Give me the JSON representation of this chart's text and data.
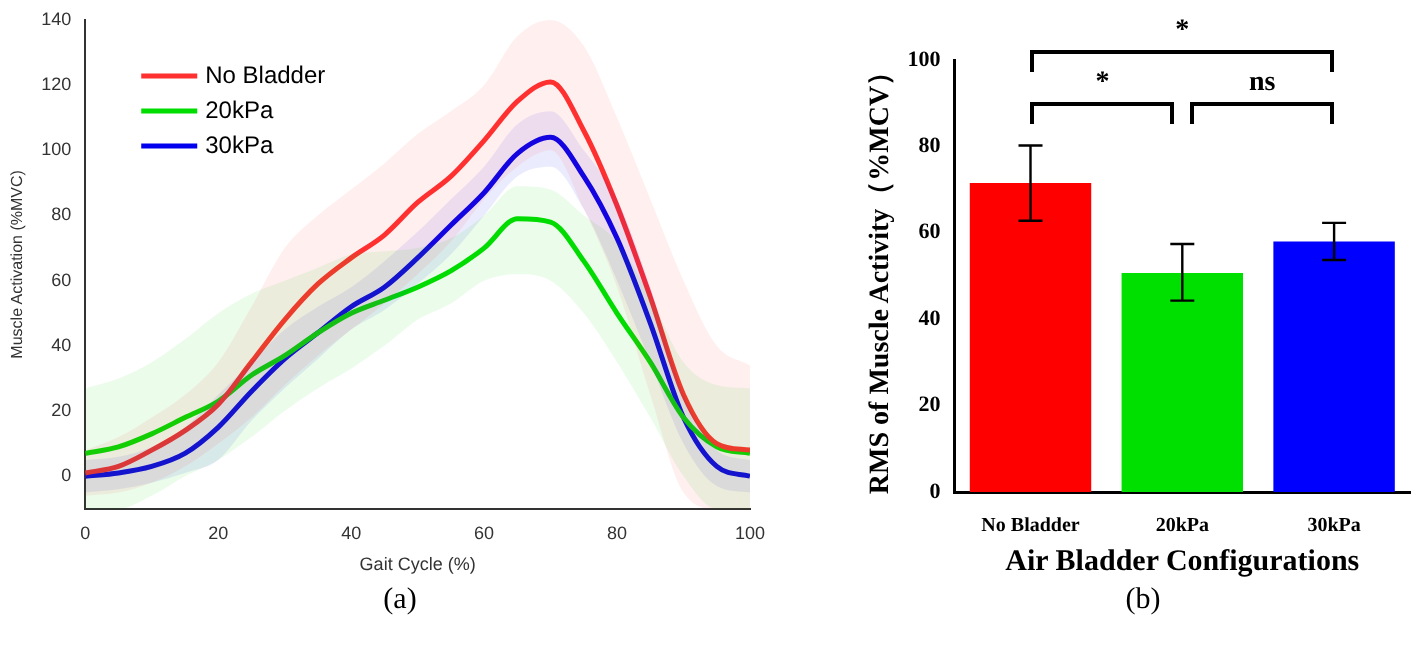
{
  "chart_data": [
    {
      "type": "line",
      "xlabel": "Gait Cycle (%)",
      "ylabel": "Muscle Activation (%MVC)",
      "xlim": [
        0,
        100
      ],
      "xticks": [
        0,
        20,
        40,
        60,
        80,
        100
      ],
      "ylim": [
        -10,
        140
      ],
      "yticks": [
        0,
        20,
        40,
        60,
        80,
        100,
        120,
        140
      ],
      "legend": "top left",
      "annotations": [
        "(a)"
      ],
      "x": [
        0,
        5,
        10,
        15,
        20,
        25,
        30,
        35,
        40,
        45,
        50,
        55,
        60,
        65,
        70,
        75,
        80,
        85,
        90,
        95,
        100
      ],
      "series": [
        {
          "name": "No Bladder",
          "color": "#ff3030",
          "values": [
            1,
            3,
            8,
            14,
            22,
            35,
            48,
            59,
            67,
            74,
            84,
            92,
            103,
            115,
            121,
            106,
            83,
            55,
            25,
            10,
            8
          ],
          "upper": [
            8,
            12,
            18,
            25,
            35,
            52,
            70,
            80,
            88,
            96,
            105,
            112,
            120,
            135,
            140,
            132,
            110,
            85,
            60,
            40,
            34
          ],
          "lower": [
            -6,
            -5,
            -2,
            3,
            10,
            18,
            28,
            37,
            45,
            53,
            62,
            72,
            85,
            95,
            100,
            82,
            58,
            25,
            -5,
            -10,
            -10
          ]
        },
        {
          "name": "20kPa",
          "color": "#00dd00",
          "values": [
            7,
            9,
            13,
            18,
            23,
            31,
            37,
            44,
            50,
            54,
            58,
            63,
            70,
            79,
            78,
            66,
            50,
            35,
            18,
            9,
            7
          ],
          "upper": [
            27,
            30,
            35,
            42,
            50,
            56,
            60,
            64,
            68,
            69,
            70,
            73,
            80,
            89,
            88,
            80,
            72,
            55,
            35,
            28,
            27
          ],
          "lower": [
            -10,
            -10,
            -6,
            0,
            5,
            12,
            20,
            27,
            33,
            40,
            48,
            53,
            60,
            62,
            60,
            50,
            35,
            18,
            0,
            -10,
            -10
          ]
        },
        {
          "name": "30kPa",
          "color": "#0000ee",
          "values": [
            0,
            1,
            3,
            7,
            15,
            26,
            36,
            44,
            52,
            58,
            67,
            77,
            87,
            99,
            104,
            92,
            73,
            47,
            18,
            3,
            0
          ],
          "upper": [
            5,
            6,
            9,
            15,
            25,
            35,
            45,
            52,
            58,
            66,
            75,
            85,
            95,
            108,
            112,
            100,
            85,
            58,
            25,
            8,
            5
          ],
          "lower": [
            -5,
            -4,
            -2,
            1,
            5,
            17,
            27,
            36,
            45,
            51,
            59,
            68,
            80,
            92,
            95,
            82,
            60,
            35,
            10,
            -3,
            -5
          ]
        }
      ]
    },
    {
      "type": "bar",
      "xlabel": "Air Bladder Configurations",
      "ylabel": "RMS of Muscle Activity（%MCV）",
      "categories": [
        "No Bladder",
        "20kPa",
        "30kPa"
      ],
      "values": [
        71.5,
        50.7,
        58.0
      ],
      "colors": [
        "#ff0000",
        "#00e000",
        "#0000ff"
      ],
      "errors": [
        [
          62.8,
          80.2
        ],
        [
          44.3,
          57.4
        ],
        [
          53.7,
          62.3
        ]
      ],
      "ylim": [
        0,
        100
      ],
      "yticks": [
        0,
        20,
        40,
        60,
        80,
        100
      ],
      "annotations": [
        "*",
        "ns",
        "*",
        "(b)"
      ]
    }
  ]
}
